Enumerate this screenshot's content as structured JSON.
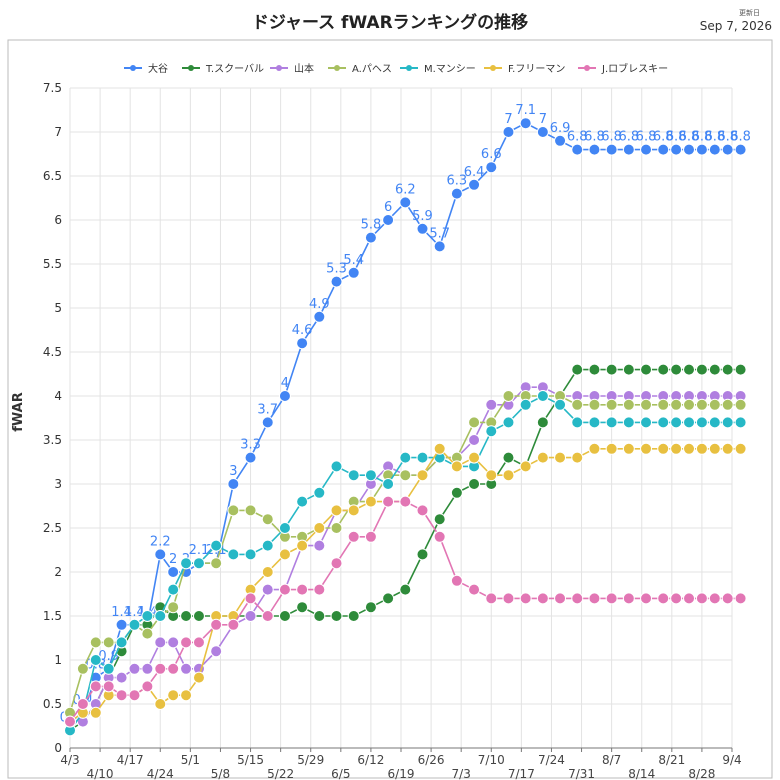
{
  "chart_data": {
    "type": "line",
    "title": "ドジャース fWARランキングの推移",
    "updated_label": "更新日",
    "updated_date": "Sep 7, 2026",
    "xlabel": "",
    "ylabel": "fWAR",
    "ylim": [
      0,
      7.5
    ],
    "yticks": [
      "0",
      "0.5",
      "1",
      "1.5",
      "2",
      "2.5",
      "3",
      "3.5",
      "4",
      "4.5",
      "5",
      "5.5",
      "6",
      "6.5",
      "7",
      "7.5"
    ],
    "grid": true,
    "legend_position": "top",
    "x": [
      "4/3",
      "4/6",
      "4/9",
      "4/12",
      "4/15",
      "4/18",
      "4/21",
      "4/24",
      "4/27",
      "4/30",
      "5/3",
      "5/7",
      "5/11",
      "5/15",
      "5/19",
      "5/23",
      "5/27",
      "5/31",
      "6/4",
      "6/8",
      "6/12",
      "6/16",
      "6/20",
      "6/24",
      "6/28",
      "7/2",
      "7/6",
      "7/10",
      "7/14",
      "7/18",
      "7/22",
      "7/26",
      "7/30",
      "8/3",
      "8/7",
      "8/11",
      "8/15",
      "8/19",
      "8/22",
      "8/25",
      "8/28",
      "8/31",
      "9/3",
      "9/6"
    ],
    "xticks": [
      "4/3",
      "4/10",
      "4/17",
      "4/24",
      "5/1",
      "5/8",
      "5/15",
      "5/22",
      "5/29",
      "6/5",
      "6/12",
      "6/19",
      "6/26",
      "7/3",
      "7/10",
      "7/17",
      "7/24",
      "7/31",
      "8/7",
      "8/14",
      "8/21",
      "8/28",
      "9/4"
    ],
    "label_series": "大谷",
    "series": [
      {
        "name": "大谷",
        "color": "#4285f4",
        "values": [
          0.2,
          0.4,
          0.8,
          0.9,
          1.4,
          1.4,
          1.4,
          2.2,
          2.0,
          2.0,
          2.1,
          2.1,
          3.0,
          3.3,
          3.7,
          4.0,
          4.6,
          4.9,
          5.3,
          5.4,
          5.8,
          6.0,
          6.2,
          5.9,
          5.7,
          6.3,
          6.4,
          6.6,
          7.0,
          7.1,
          7.0,
          6.9,
          6.8,
          6.8,
          6.8,
          6.8,
          6.8,
          6.8,
          6.8,
          6.8,
          6.8,
          6.8,
          6.8,
          6.8
        ]
      },
      {
        "name": "T.スクーバル",
        "color": "#2e8b3a",
        "values": [
          0.2,
          0.3,
          0.5,
          0.8,
          1.1,
          1.4,
          1.4,
          1.6,
          1.5,
          1.5,
          1.5,
          1.5,
          1.5,
          1.5,
          1.5,
          1.5,
          1.6,
          1.5,
          1.5,
          1.5,
          1.6,
          1.7,
          1.8,
          2.2,
          2.6,
          2.9,
          3.0,
          3.0,
          3.3,
          3.2,
          3.7,
          4.0,
          4.3,
          4.3,
          4.3,
          4.3,
          4.3,
          4.3,
          4.3,
          4.3,
          4.3,
          4.3,
          4.3,
          4.3
        ]
      },
      {
        "name": "山本",
        "color": "#b07fe0",
        "values": [
          0.3,
          0.3,
          0.5,
          0.8,
          0.8,
          0.9,
          0.9,
          1.2,
          1.2,
          0.9,
          0.9,
          1.1,
          1.4,
          1.5,
          1.8,
          1.8,
          2.3,
          2.3,
          2.7,
          2.7,
          3.0,
          3.2,
          3.1,
          3.1,
          3.3,
          3.3,
          3.5,
          3.9,
          3.9,
          4.1,
          4.1,
          4.0,
          4.0,
          4.0,
          4.0,
          4.0,
          4.0,
          4.0,
          4.0,
          4.0,
          4.0,
          4.0,
          4.0,
          4.0
        ]
      },
      {
        "name": "A.パヘス",
        "color": "#a8c060",
        "values": [
          0.4,
          0.9,
          1.2,
          1.2,
          1.2,
          1.4,
          1.3,
          1.5,
          1.6,
          2.1,
          2.1,
          2.1,
          2.7,
          2.7,
          2.6,
          2.4,
          2.4,
          2.5,
          2.5,
          2.8,
          2.8,
          3.1,
          3.1,
          3.1,
          3.3,
          3.3,
          3.7,
          3.7,
          4.0,
          4.0,
          4.0,
          4.0,
          3.9,
          3.9,
          3.9,
          3.9,
          3.9,
          3.9,
          3.9,
          3.9,
          3.9,
          3.9,
          3.9,
          3.9
        ]
      },
      {
        "name": "M.マンシー",
        "color": "#26b8c6",
        "values": [
          0.2,
          0.4,
          1.0,
          0.9,
          1.2,
          1.4,
          1.5,
          1.5,
          1.8,
          2.1,
          2.1,
          2.3,
          2.2,
          2.2,
          2.3,
          2.5,
          2.8,
          2.9,
          3.2,
          3.1,
          3.1,
          3.0,
          3.3,
          3.3,
          3.3,
          3.2,
          3.2,
          3.6,
          3.7,
          3.9,
          4.0,
          3.9,
          3.7,
          3.7,
          3.7,
          3.7,
          3.7,
          3.7,
          3.7,
          3.7,
          3.7,
          3.7,
          3.7,
          3.7
        ]
      },
      {
        "name": "F.フリーマン",
        "color": "#e8c040",
        "values": [
          0.3,
          0.4,
          0.4,
          0.6,
          0.6,
          0.6,
          0.7,
          0.5,
          0.6,
          0.6,
          0.8,
          1.5,
          1.5,
          1.8,
          2.0,
          2.2,
          2.3,
          2.5,
          2.7,
          2.7,
          2.8,
          2.8,
          2.8,
          3.1,
          3.4,
          3.2,
          3.3,
          3.1,
          3.1,
          3.2,
          3.3,
          3.3,
          3.3,
          3.4,
          3.4,
          3.4,
          3.4,
          3.4,
          3.4,
          3.4,
          3.4,
          3.4,
          3.4,
          3.4
        ]
      },
      {
        "name": "J.ロブレスキー",
        "color": "#e276b4",
        "values": [
          0.3,
          0.5,
          0.7,
          0.7,
          0.6,
          0.6,
          0.7,
          0.9,
          0.9,
          1.2,
          1.2,
          1.4,
          1.4,
          1.7,
          1.5,
          1.8,
          1.8,
          1.8,
          2.1,
          2.4,
          2.4,
          2.8,
          2.8,
          2.7,
          2.4,
          1.9,
          1.8,
          1.7,
          1.7,
          1.7,
          1.7,
          1.7,
          1.7,
          1.7,
          1.7,
          1.7,
          1.7,
          1.7,
          1.7,
          1.7,
          1.7,
          1.7,
          1.7,
          1.7
        ]
      }
    ]
  }
}
